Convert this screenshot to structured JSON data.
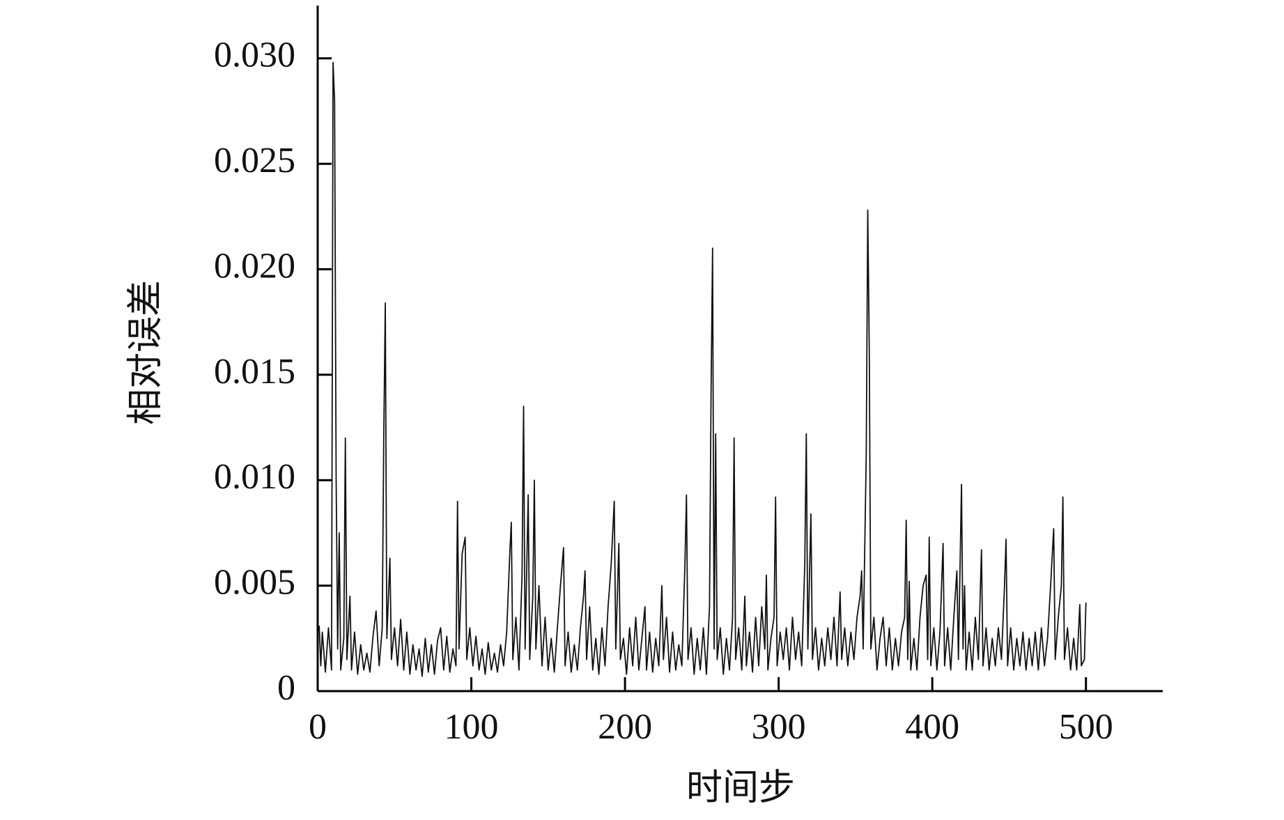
{
  "chart_data": {
    "type": "line",
    "x_label": "时间步",
    "y_label": "相对误差",
    "xlim": [
      0,
      550
    ],
    "xticks": [
      0,
      100,
      200,
      300,
      400,
      500
    ],
    "ylim": [
      0,
      0.0325
    ],
    "yticks": [
      0,
      0.005,
      {
        "value": 0.01,
        "label": "0.010"
      },
      0.015,
      {
        "value": 0.02,
        "label": "0.020"
      },
      0.025,
      {
        "value": 0.03,
        "label": "0.030"
      }
    ],
    "series": [
      {
        "color": "#111111",
        "x": [
          1,
          2,
          3,
          5,
          7,
          9,
          10,
          11,
          12,
          13,
          14,
          15,
          17,
          18,
          19,
          21,
          22,
          24,
          26,
          28,
          30,
          32,
          34,
          36,
          38,
          40,
          42,
          43,
          44,
          45,
          47,
          48,
          50,
          52,
          54,
          56,
          58,
          60,
          62,
          64,
          66,
          68,
          70,
          72,
          74,
          76,
          78,
          80,
          82,
          84,
          86,
          88,
          90,
          91,
          92,
          94,
          96,
          97,
          99,
          101,
          103,
          105,
          107,
          109,
          111,
          113,
          115,
          117,
          119,
          121,
          123,
          125,
          126,
          127,
          129,
          131,
          133,
          134,
          135,
          137,
          138,
          140,
          141,
          142,
          144,
          146,
          148,
          150,
          152,
          154,
          156,
          158,
          160,
          161,
          163,
          165,
          167,
          169,
          171,
          173,
          174,
          175,
          177,
          179,
          181,
          183,
          185,
          187,
          189,
          191,
          193,
          194,
          196,
          197,
          199,
          201,
          203,
          205,
          207,
          209,
          211,
          213,
          214,
          216,
          218,
          220,
          222,
          224,
          225,
          227,
          229,
          231,
          233,
          235,
          237,
          239,
          240,
          241,
          243,
          245,
          247,
          249,
          251,
          253,
          255,
          256,
          257,
          258,
          259,
          260,
          262,
          264,
          266,
          268,
          270,
          271,
          272,
          274,
          276,
          278,
          279,
          281,
          283,
          285,
          287,
          289,
          291,
          292,
          293,
          295,
          297,
          298,
          299,
          301,
          303,
          305,
          307,
          309,
          311,
          313,
          315,
          317,
          318,
          319,
          321,
          322,
          324,
          326,
          328,
          330,
          332,
          334,
          336,
          338,
          340,
          341,
          343,
          345,
          347,
          349,
          351,
          353,
          354,
          355,
          357,
          358,
          359,
          360,
          362,
          364,
          366,
          368,
          370,
          372,
          374,
          376,
          378,
          380,
          382,
          383,
          384,
          385,
          386,
          388,
          390,
          392,
          394,
          396,
          397,
          398,
          399,
          401,
          403,
          405,
          407,
          408,
          410,
          412,
          414,
          416,
          417,
          419,
          420,
          421,
          422,
          424,
          426,
          428,
          430,
          432,
          433,
          435,
          437,
          439,
          441,
          443,
          445,
          447,
          448,
          449,
          451,
          453,
          455,
          457,
          459,
          461,
          463,
          465,
          467,
          469,
          471,
          473,
          475,
          477,
          479,
          480,
          482,
          484,
          485,
          486,
          488,
          490,
          492,
          494,
          496,
          497,
          499,
          500
        ],
        "values": [
          0.0031,
          0.0012,
          0.0028,
          0.0009,
          0.003,
          0.001,
          0.0298,
          0.028,
          0.0101,
          0.002,
          0.0075,
          0.001,
          0.0025,
          0.012,
          0.0015,
          0.0045,
          0.001,
          0.0028,
          0.0008,
          0.0022,
          0.001,
          0.0018,
          0.0009,
          0.0026,
          0.0038,
          0.0012,
          0.003,
          0.012,
          0.0184,
          0.0025,
          0.0063,
          0.0015,
          0.003,
          0.0012,
          0.0034,
          0.001,
          0.0028,
          0.0008,
          0.0022,
          0.001,
          0.002,
          0.0007,
          0.0025,
          0.0009,
          0.0022,
          0.0008,
          0.0024,
          0.003,
          0.001,
          0.0026,
          0.0009,
          0.002,
          0.0012,
          0.009,
          0.002,
          0.0065,
          0.0073,
          0.0015,
          0.003,
          0.0012,
          0.0026,
          0.001,
          0.002,
          0.0008,
          0.0023,
          0.001,
          0.0018,
          0.0009,
          0.0022,
          0.0012,
          0.0028,
          0.0065,
          0.008,
          0.0015,
          0.0035,
          0.001,
          0.0055,
          0.0135,
          0.002,
          0.0093,
          0.0015,
          0.0045,
          0.01,
          0.002,
          0.005,
          0.0012,
          0.0035,
          0.001,
          0.0025,
          0.0009,
          0.003,
          0.005,
          0.0068,
          0.0012,
          0.0028,
          0.0009,
          0.0022,
          0.001,
          0.003,
          0.0045,
          0.0057,
          0.0015,
          0.004,
          0.001,
          0.0025,
          0.0008,
          0.003,
          0.0012,
          0.004,
          0.006,
          0.009,
          0.002,
          0.007,
          0.0015,
          0.0025,
          0.0008,
          0.003,
          0.0012,
          0.0035,
          0.001,
          0.0025,
          0.004,
          0.001,
          0.0028,
          0.0009,
          0.0025,
          0.0012,
          0.005,
          0.0015,
          0.0035,
          0.0009,
          0.0028,
          0.001,
          0.0022,
          0.0012,
          0.006,
          0.0093,
          0.0015,
          0.003,
          0.0008,
          0.0025,
          0.001,
          0.003,
          0.0008,
          0.004,
          0.014,
          0.021,
          0.002,
          0.0122,
          0.0015,
          0.003,
          0.0008,
          0.0025,
          0.001,
          0.0035,
          0.012,
          0.0015,
          0.003,
          0.001,
          0.0045,
          0.0012,
          0.0028,
          0.0009,
          0.0035,
          0.0012,
          0.004,
          0.002,
          0.0055,
          0.001,
          0.0025,
          0.0035,
          0.0092,
          0.0012,
          0.0028,
          0.0015,
          0.003,
          0.001,
          0.0035,
          0.0015,
          0.0028,
          0.0012,
          0.006,
          0.0122,
          0.002,
          0.0084,
          0.0015,
          0.003,
          0.001,
          0.0025,
          0.0012,
          0.003,
          0.0015,
          0.0035,
          0.0012,
          0.0047,
          0.0015,
          0.003,
          0.0012,
          0.0028,
          0.0015,
          0.0035,
          0.0045,
          0.0057,
          0.002,
          0.0112,
          0.0228,
          0.016,
          0.002,
          0.0035,
          0.001,
          0.0025,
          0.0035,
          0.0012,
          0.003,
          0.001,
          0.0025,
          0.0012,
          0.0028,
          0.0035,
          0.0081,
          0.0015,
          0.0052,
          0.001,
          0.0025,
          0.001,
          0.0035,
          0.005,
          0.0055,
          0.0015,
          0.0073,
          0.0012,
          0.003,
          0.001,
          0.0028,
          0.007,
          0.0012,
          0.003,
          0.001,
          0.0035,
          0.0057,
          0.0015,
          0.0098,
          0.002,
          0.005,
          0.001,
          0.0028,
          0.001,
          0.0035,
          0.0015,
          0.0067,
          0.0012,
          0.003,
          0.001,
          0.0025,
          0.0012,
          0.003,
          0.0015,
          0.005,
          0.0072,
          0.0012,
          0.003,
          0.001,
          0.0025,
          0.0012,
          0.0028,
          0.001,
          0.0025,
          0.0012,
          0.0028,
          0.001,
          0.003,
          0.0012,
          0.0025,
          0.005,
          0.0077,
          0.0015,
          0.0035,
          0.005,
          0.0092,
          0.0015,
          0.003,
          0.001,
          0.0025,
          0.001,
          0.0041,
          0.0012,
          0.0015,
          0.0042
        ]
      }
    ]
  }
}
